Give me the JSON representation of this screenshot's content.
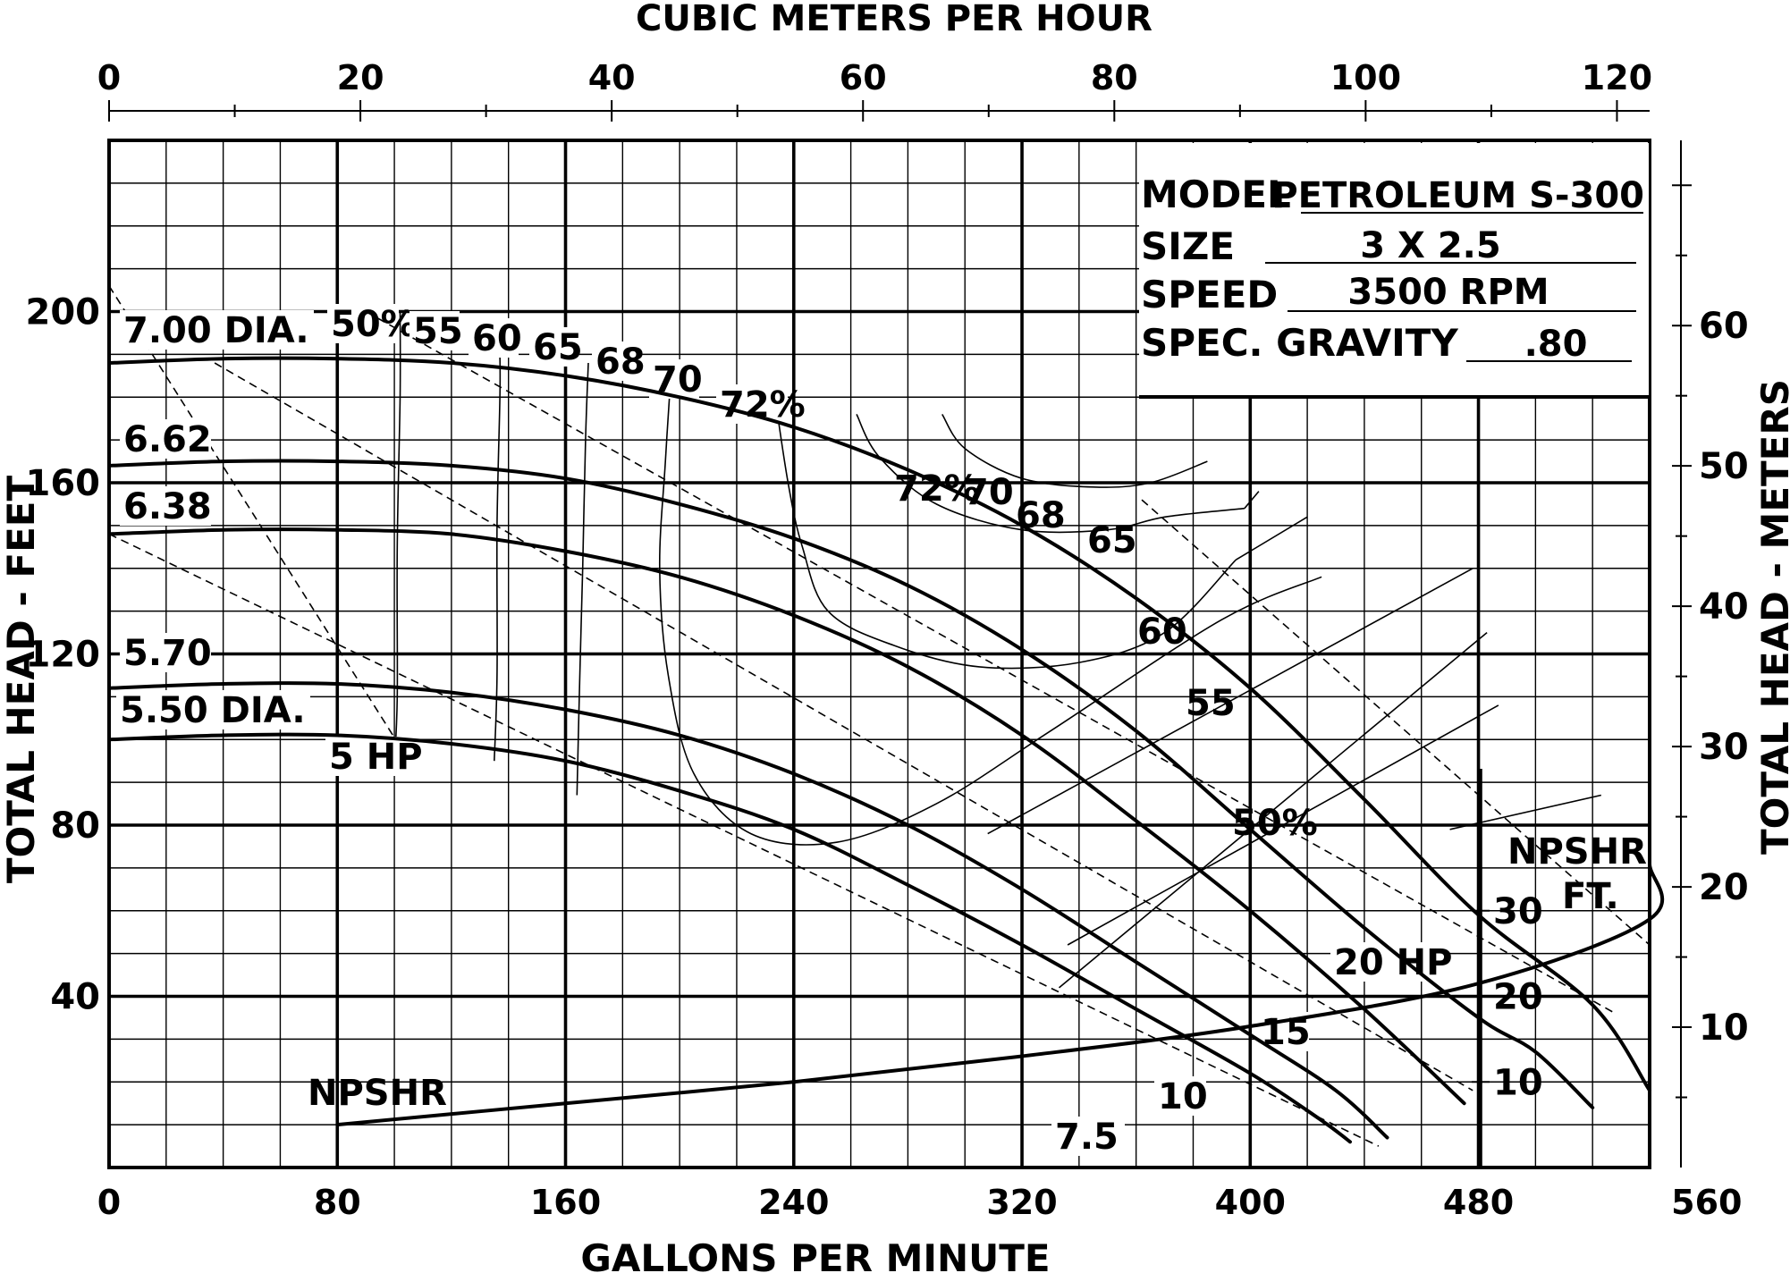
{
  "chart_data": {
    "type": "line",
    "title": "",
    "top_axis": {
      "label": "CUBIC METERS PER HOUR",
      "range": [
        0,
        122.6
      ],
      "ticks": [
        0,
        20,
        40,
        60,
        80,
        100,
        120
      ],
      "minor_step": 10
    },
    "xlabel": "GALLONS PER MINUTE",
    "xlim": [
      0,
      540
    ],
    "xticks": [
      0,
      80,
      160,
      240,
      320,
      400,
      480,
      560
    ],
    "ylabel": "TOTAL HEAD - FEET",
    "ylim": [
      0,
      240
    ],
    "yticks": [
      40,
      80,
      120,
      160,
      200
    ],
    "right_axis": {
      "label": "TOTAL HEAD - METERS",
      "range": [
        0,
        73.2
      ],
      "ticks": [
        10,
        20,
        30,
        40,
        50,
        60
      ]
    },
    "grid": true,
    "info_box": [
      {
        "key": "MODEL",
        "value": "PETROLEUM S-300"
      },
      {
        "key": "SIZE",
        "value": "3 X 2.5"
      },
      {
        "key": "SPEED",
        "value": "3500 RPM"
      },
      {
        "key": "SPEC. GRAVITY",
        "value": ".80"
      }
    ],
    "head_curves": [
      {
        "name": "7.00 DIA.",
        "points": [
          [
            0,
            188
          ],
          [
            40,
            189
          ],
          [
            80,
            189
          ],
          [
            120,
            188
          ],
          [
            160,
            185
          ],
          [
            200,
            180
          ],
          [
            240,
            173
          ],
          [
            280,
            163
          ],
          [
            320,
            150
          ],
          [
            360,
            133
          ],
          [
            400,
            112
          ],
          [
            440,
            86
          ],
          [
            480,
            59
          ],
          [
            520,
            38
          ],
          [
            540,
            18
          ]
        ]
      },
      {
        "name": "6.62",
        "points": [
          [
            0,
            164
          ],
          [
            40,
            165
          ],
          [
            80,
            165
          ],
          [
            120,
            164
          ],
          [
            160,
            161
          ],
          [
            200,
            155
          ],
          [
            240,
            147
          ],
          [
            280,
            136
          ],
          [
            320,
            121
          ],
          [
            360,
            102
          ],
          [
            400,
            79
          ],
          [
            440,
            56
          ],
          [
            480,
            35
          ],
          [
            500,
            27
          ],
          [
            520,
            14
          ]
        ]
      },
      {
        "name": "6.38",
        "points": [
          [
            0,
            148
          ],
          [
            40,
            149
          ],
          [
            80,
            149
          ],
          [
            120,
            148
          ],
          [
            160,
            144
          ],
          [
            200,
            138
          ],
          [
            240,
            129
          ],
          [
            280,
            117
          ],
          [
            320,
            101
          ],
          [
            360,
            81
          ],
          [
            400,
            60
          ],
          [
            440,
            37
          ],
          [
            475,
            15
          ]
        ]
      },
      {
        "name": "5.70",
        "points": [
          [
            0,
            112
          ],
          [
            40,
            113
          ],
          [
            80,
            113
          ],
          [
            120,
            111
          ],
          [
            160,
            107
          ],
          [
            200,
            101
          ],
          [
            240,
            92
          ],
          [
            280,
            80
          ],
          [
            320,
            65
          ],
          [
            360,
            48
          ],
          [
            400,
            31
          ],
          [
            430,
            18
          ],
          [
            448,
            7
          ]
        ]
      },
      {
        "name": "5.50 DIA.",
        "points": [
          [
            0,
            100
          ],
          [
            40,
            101
          ],
          [
            80,
            101
          ],
          [
            120,
            99
          ],
          [
            160,
            95
          ],
          [
            200,
            88
          ],
          [
            240,
            79
          ],
          [
            280,
            66
          ],
          [
            320,
            52
          ],
          [
            360,
            37
          ],
          [
            400,
            22
          ],
          [
            425,
            11
          ],
          [
            435,
            6
          ]
        ]
      }
    ],
    "efficiency_contours": [
      {
        "label": "50%",
        "left_branch": [
          [
            102,
            200
          ],
          [
            102,
            180
          ],
          [
            101,
            145
          ],
          [
            101,
            110
          ],
          [
            100,
            94
          ]
        ],
        "right_leader": [
          [
            470,
            79
          ],
          [
            523,
            87
          ]
        ],
        "right_label": "50%"
      },
      {
        "label": "55",
        "left_branch": [
          [
            137,
            190
          ],
          [
            137,
            180
          ],
          [
            136,
            150
          ],
          [
            136,
            115
          ],
          [
            135,
            95
          ]
        ],
        "right_leader": [
          [
            336,
            52
          ],
          [
            487,
            108
          ]
        ],
        "right_label": "55"
      },
      {
        "label": "60",
        "left_branch": [
          [
            168,
            188
          ],
          [
            167,
            170
          ],
          [
            166,
            140
          ],
          [
            165,
            115
          ],
          [
            164,
            87
          ]
        ],
        "right_leader": [
          [
            333,
            42
          ],
          [
            483,
            125
          ]
        ],
        "right_label": "60"
      },
      {
        "label": "65",
        "left_branch": [
          [
            197,
            186
          ],
          [
            195,
            165
          ],
          [
            193,
            140
          ],
          [
            196,
            115
          ],
          [
            205,
            92
          ],
          [
            225,
            78
          ],
          [
            255,
            76
          ],
          [
            290,
            85
          ],
          [
            330,
            102
          ],
          [
            390,
            128
          ],
          [
            425,
            138
          ]
        ],
        "right_label": "65"
      },
      {
        "label": "68",
        "left_branch": [
          [
            233,
            182
          ],
          [
            238,
            160
          ],
          [
            243,
            145
          ],
          [
            252,
            130
          ],
          [
            275,
            122
          ],
          [
            305,
            117
          ],
          [
            340,
            118
          ],
          [
            370,
            125
          ],
          [
            395,
            142
          ]
        ],
        "right_label": "68"
      },
      {
        "label": "70",
        "left_branch": [
          [
            262,
            176
          ],
          [
            270,
            166
          ],
          [
            290,
            155
          ],
          [
            320,
            149
          ],
          [
            350,
            149
          ],
          [
            370,
            152
          ],
          [
            398,
            154
          ]
        ],
        "right_label": "70"
      },
      {
        "label": "72%",
        "left_branch": [
          [
            292,
            176
          ],
          [
            300,
            168
          ],
          [
            320,
            161
          ],
          [
            345,
            159
          ],
          [
            365,
            160
          ],
          [
            385,
            165
          ]
        ],
        "right_label": "72%"
      }
    ],
    "hp_lines": [
      {
        "label": "5 HP",
        "points": [
          [
            0,
            206
          ],
          [
            108,
            92
          ]
        ]
      },
      {
        "label": "7.5",
        "points": [
          [
            0,
            148
          ],
          [
            445,
            5
          ]
        ]
      },
      {
        "label": "10",
        "points": [
          [
            37,
            188
          ],
          [
            478,
            18
          ]
        ]
      },
      {
        "label": "15",
        "points": [
          [
            90,
            200
          ],
          [
            528,
            36
          ]
        ]
      },
      {
        "label": "20 HP",
        "points": [
          [
            362,
            156
          ],
          [
            568,
            52
          ]
        ]
      }
    ],
    "npshr": {
      "label": "NPSHR",
      "scale_label": [
        "NPSHR",
        "FT."
      ],
      "scale_ticks": [
        10,
        20,
        30
      ],
      "points": [
        [
          80,
          10
        ],
        [
          160,
          15
        ],
        [
          240,
          20
        ],
        [
          320,
          26
        ],
        [
          400,
          33
        ],
        [
          480,
          43
        ],
        [
          560,
          58
        ],
        [
          600,
          71
        ],
        [
          627,
          80
        ]
      ]
    }
  }
}
